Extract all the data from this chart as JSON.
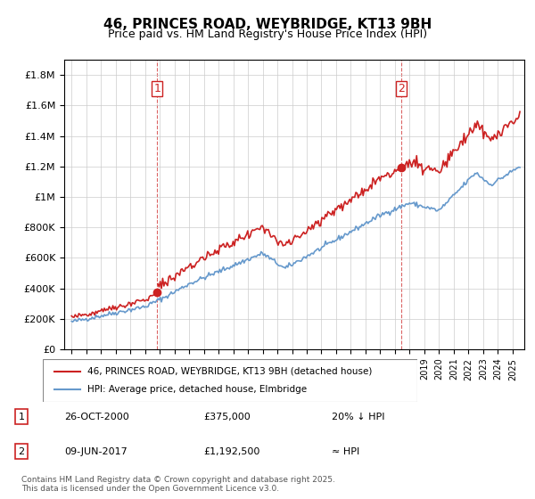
{
  "title": "46, PRINCES ROAD, WEYBRIDGE, KT13 9BH",
  "subtitle": "Price paid vs. HM Land Registry's House Price Index (HPI)",
  "xlabel": "",
  "ylabel": "",
  "ylim": [
    0,
    1900000
  ],
  "yticks": [
    0,
    200000,
    400000,
    600000,
    800000,
    1000000,
    1200000,
    1400000,
    1600000,
    1800000
  ],
  "ytick_labels": [
    "£0",
    "£200K",
    "£400K",
    "£600K",
    "£800K",
    "£1M",
    "£1.2M",
    "£1.4M",
    "£1.6M",
    "£1.8M"
  ],
  "hpi_color": "#6699cc",
  "price_color": "#cc2222",
  "marker1_x": 2000.82,
  "marker1_y": 375000,
  "marker1_label": "1",
  "marker2_x": 2017.44,
  "marker2_y": 1192500,
  "marker2_label": "2",
  "legend_line1": "46, PRINCES ROAD, WEYBRIDGE, KT13 9BH (detached house)",
  "legend_line2": "HPI: Average price, detached house, Elmbridge",
  "annotation1_num": "1",
  "annotation1_date": "26-OCT-2000",
  "annotation1_price": "£375,000",
  "annotation1_hpi": "20% ↓ HPI",
  "annotation2_num": "2",
  "annotation2_date": "09-JUN-2017",
  "annotation2_price": "£1,192,500",
  "annotation2_hpi": "≈ HPI",
  "footnote": "Contains HM Land Registry data © Crown copyright and database right 2025.\nThis data is licensed under the Open Government Licence v3.0.",
  "xmin": 1994.5,
  "xmax": 2025.8
}
